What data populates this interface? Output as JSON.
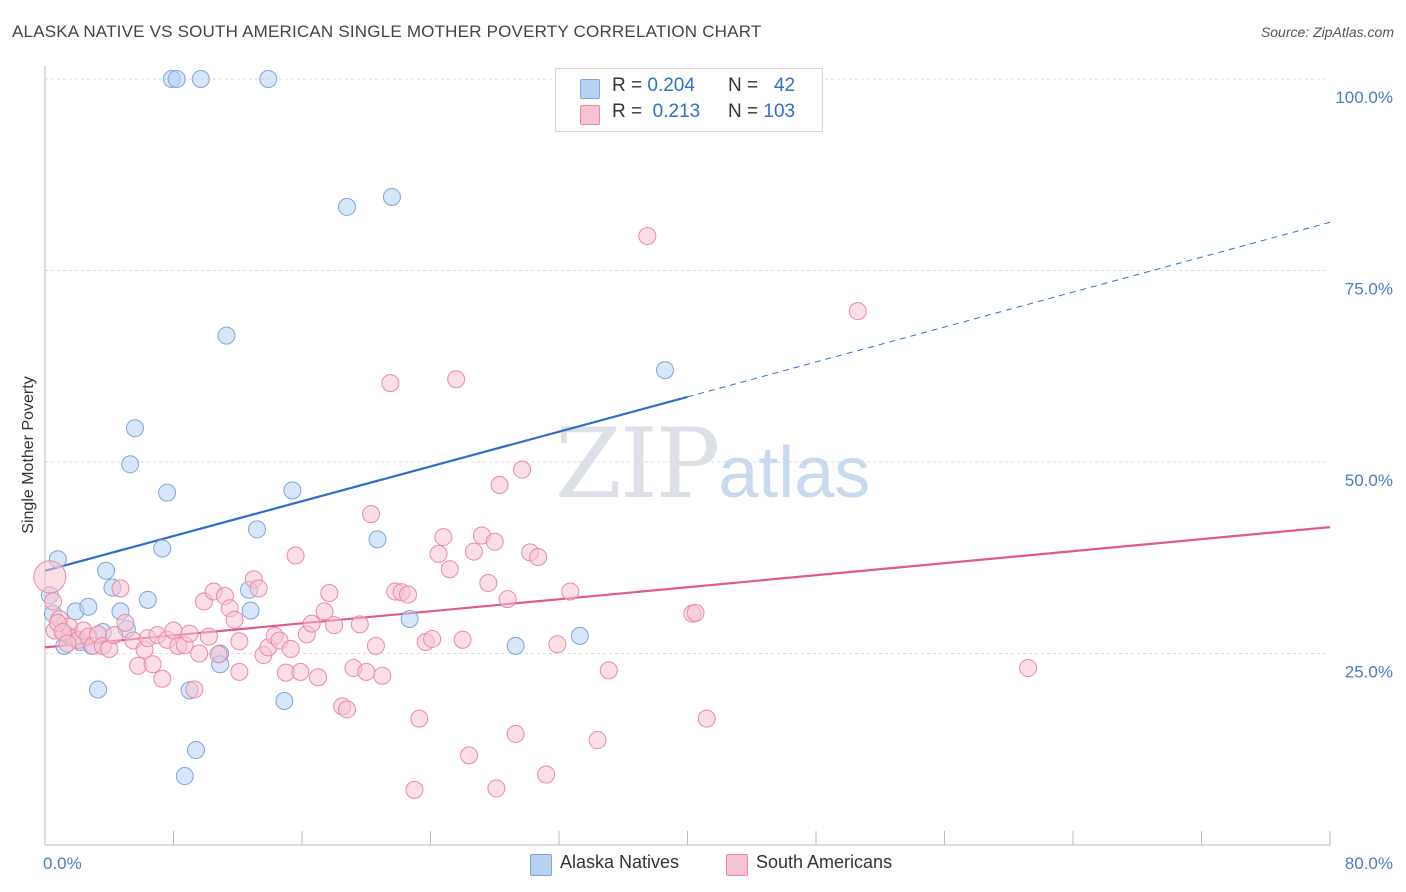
{
  "title": "ALASKA NATIVE VS SOUTH AMERICAN SINGLE MOTHER POVERTY CORRELATION CHART",
  "source": "Source: ZipAtlas.com",
  "watermark": {
    "zip": "ZIP",
    "atlas": "atlas"
  },
  "legend": {
    "rows": [
      {
        "r_label": "R =",
        "r_value": "0.204",
        "n_label": "N =",
        "n_value": "42",
        "color": "#b7d1f2",
        "border": "#7fa6dc"
      },
      {
        "r_label": "R =",
        "r_value": "0.213",
        "n_label": "N =",
        "n_value": "103",
        "color": "#f7c2d1",
        "border": "#ea8aa7"
      }
    ]
  },
  "bottom_legend": [
    {
      "label": "Alaska Natives",
      "color": "#b7d1f2",
      "border": "#7fa6dc"
    },
    {
      "label": "South Americans",
      "color": "#f7c2d1",
      "border": "#ea8aa7"
    }
  ],
  "chart_data": {
    "type": "scatter",
    "title": "ALASKA NATIVE VS SOUTH AMERICAN SINGLE MOTHER POVERTY CORRELATION CHART",
    "xlabel": "",
    "ylabel": "Single Mother Poverty",
    "xlim": [
      0,
      80
    ],
    "ylim": [
      0,
      100
    ],
    "x_ticks": [
      "0.0%",
      "80.0%"
    ],
    "y_ticks": [
      {
        "value": 25,
        "label": "25.0%"
      },
      {
        "value": 50,
        "label": "50.0%"
      },
      {
        "value": 75,
        "label": "75.0%"
      },
      {
        "value": 100,
        "label": "100.0%"
      }
    ],
    "grid": true,
    "legend_position": "top-center",
    "series": [
      {
        "name": "Alaska Natives",
        "color": "#b7d1f2",
        "stroke": "#7fa6dc",
        "trend_color": "#2f6fca",
        "trend": {
          "x0": 0,
          "y0": 35.8,
          "x1": 40,
          "y1": 58.5,
          "x_dash_end": 80,
          "y_dash_end": 81.3
        },
        "points": [
          [
            0.5,
            30.2
          ],
          [
            0.8,
            37.3
          ],
          [
            1.2,
            26.0
          ],
          [
            1.5,
            27.3
          ],
          [
            1.9,
            30.5
          ],
          [
            2.2,
            26.5
          ],
          [
            2.7,
            31.1
          ],
          [
            2.9,
            26.0
          ],
          [
            3.3,
            20.3
          ],
          [
            3.6,
            27.8
          ],
          [
            3.8,
            35.8
          ],
          [
            4.2,
            33.6
          ],
          [
            4.7,
            30.5
          ],
          [
            5.1,
            28.2
          ],
          [
            5.6,
            54.4
          ],
          [
            5.3,
            49.7
          ],
          [
            6.4,
            32.0
          ],
          [
            7.3,
            38.7
          ],
          [
            7.6,
            46.0
          ],
          [
            7.9,
            100
          ],
          [
            8.2,
            100
          ],
          [
            8.7,
            9.0
          ],
          [
            9.0,
            20.2
          ],
          [
            9.4,
            12.4
          ],
          [
            9.7,
            100
          ],
          [
            10.9,
            25.0
          ],
          [
            10.9,
            23.6
          ],
          [
            11.3,
            66.5
          ],
          [
            12.7,
            33.3
          ],
          [
            12.8,
            30.6
          ],
          [
            13.2,
            41.2
          ],
          [
            13.9,
            100
          ],
          [
            14.9,
            18.8
          ],
          [
            15.4,
            46.3
          ],
          [
            18.8,
            83.3
          ],
          [
            20.7,
            39.9
          ],
          [
            21.6,
            84.6
          ],
          [
            22.7,
            29.5
          ],
          [
            29.3,
            26.0
          ],
          [
            33.3,
            27.3
          ],
          [
            38.6,
            62.0
          ],
          [
            0.3,
            32.6
          ]
        ]
      },
      {
        "name": "South Americans",
        "color": "#f7c2d1",
        "stroke": "#ea8aa7",
        "trend_color": "#e05a8a",
        "trend": {
          "x0": 0,
          "y0": 25.8,
          "x1": 80,
          "y1": 41.5
        },
        "points": [
          [
            0.3,
            35.0
          ],
          [
            0.6,
            28.0
          ],
          [
            0.9,
            29.5
          ],
          [
            1.2,
            27.6
          ],
          [
            1.5,
            28.5
          ],
          [
            1.8,
            27.0
          ],
          [
            2.1,
            26.8
          ],
          [
            2.4,
            28.0
          ],
          [
            2.7,
            27.2
          ],
          [
            3.0,
            26.0
          ],
          [
            3.3,
            27.5
          ],
          [
            3.6,
            26.0
          ],
          [
            4.0,
            25.6
          ],
          [
            4.3,
            27.4
          ],
          [
            4.7,
            33.5
          ],
          [
            5.0,
            29.0
          ],
          [
            5.5,
            26.7
          ],
          [
            5.8,
            23.4
          ],
          [
            6.2,
            25.5
          ],
          [
            6.4,
            27.0
          ],
          [
            6.7,
            23.6
          ],
          [
            7.0,
            27.4
          ],
          [
            7.3,
            21.7
          ],
          [
            7.6,
            26.8
          ],
          [
            8.0,
            28.0
          ],
          [
            8.3,
            26.0
          ],
          [
            8.7,
            26.1
          ],
          [
            9.0,
            27.6
          ],
          [
            9.3,
            20.3
          ],
          [
            9.6,
            25.0
          ],
          [
            9.9,
            31.8
          ],
          [
            10.2,
            27.2
          ],
          [
            10.5,
            33.1
          ],
          [
            10.8,
            24.9
          ],
          [
            11.2,
            32.5
          ],
          [
            11.5,
            30.9
          ],
          [
            11.8,
            29.4
          ],
          [
            12.1,
            22.6
          ],
          [
            12.1,
            26.6
          ],
          [
            13.0,
            34.7
          ],
          [
            13.3,
            33.5
          ],
          [
            13.6,
            24.8
          ],
          [
            13.9,
            25.8
          ],
          [
            14.3,
            27.3
          ],
          [
            14.6,
            26.7
          ],
          [
            15.0,
            22.5
          ],
          [
            15.3,
            25.6
          ],
          [
            15.6,
            37.8
          ],
          [
            15.9,
            22.6
          ],
          [
            16.3,
            27.5
          ],
          [
            16.6,
            28.9
          ],
          [
            17.0,
            21.9
          ],
          [
            17.4,
            30.5
          ],
          [
            17.7,
            32.9
          ],
          [
            18.0,
            28.7
          ],
          [
            18.5,
            18.1
          ],
          [
            18.8,
            17.7
          ],
          [
            19.2,
            23.1
          ],
          [
            19.6,
            28.8
          ],
          [
            20.0,
            22.6
          ],
          [
            20.3,
            43.2
          ],
          [
            20.6,
            26.0
          ],
          [
            21.0,
            22.1
          ],
          [
            21.5,
            60.3
          ],
          [
            21.8,
            33.1
          ],
          [
            22.2,
            33.0
          ],
          [
            22.6,
            32.7
          ],
          [
            23.0,
            7.2
          ],
          [
            23.3,
            16.5
          ],
          [
            23.7,
            26.5
          ],
          [
            24.1,
            26.9
          ],
          [
            24.5,
            38.0
          ],
          [
            24.8,
            40.2
          ],
          [
            25.2,
            36.0
          ],
          [
            25.6,
            60.8
          ],
          [
            26.0,
            26.8
          ],
          [
            26.4,
            11.7
          ],
          [
            26.7,
            38.3
          ],
          [
            27.2,
            40.4
          ],
          [
            27.6,
            34.2
          ],
          [
            28.0,
            39.6
          ],
          [
            28.1,
            7.4
          ],
          [
            28.3,
            47.0
          ],
          [
            28.8,
            32.1
          ],
          [
            29.3,
            14.5
          ],
          [
            29.7,
            49.0
          ],
          [
            30.2,
            38.2
          ],
          [
            30.7,
            37.6
          ],
          [
            31.2,
            9.2
          ],
          [
            31.9,
            26.2
          ],
          [
            32.7,
            33.1
          ],
          [
            34.4,
            13.7
          ],
          [
            35.1,
            22.8
          ],
          [
            37.5,
            79.5
          ],
          [
            40.3,
            30.2
          ],
          [
            40.5,
            30.3
          ],
          [
            41.2,
            16.5
          ],
          [
            50.6,
            69.7
          ],
          [
            61.2,
            23.1
          ],
          [
            0.5,
            31.8
          ],
          [
            0.8,
            29.0
          ],
          [
            1.1,
            27.8
          ],
          [
            1.4,
            26.3
          ]
        ]
      }
    ]
  }
}
